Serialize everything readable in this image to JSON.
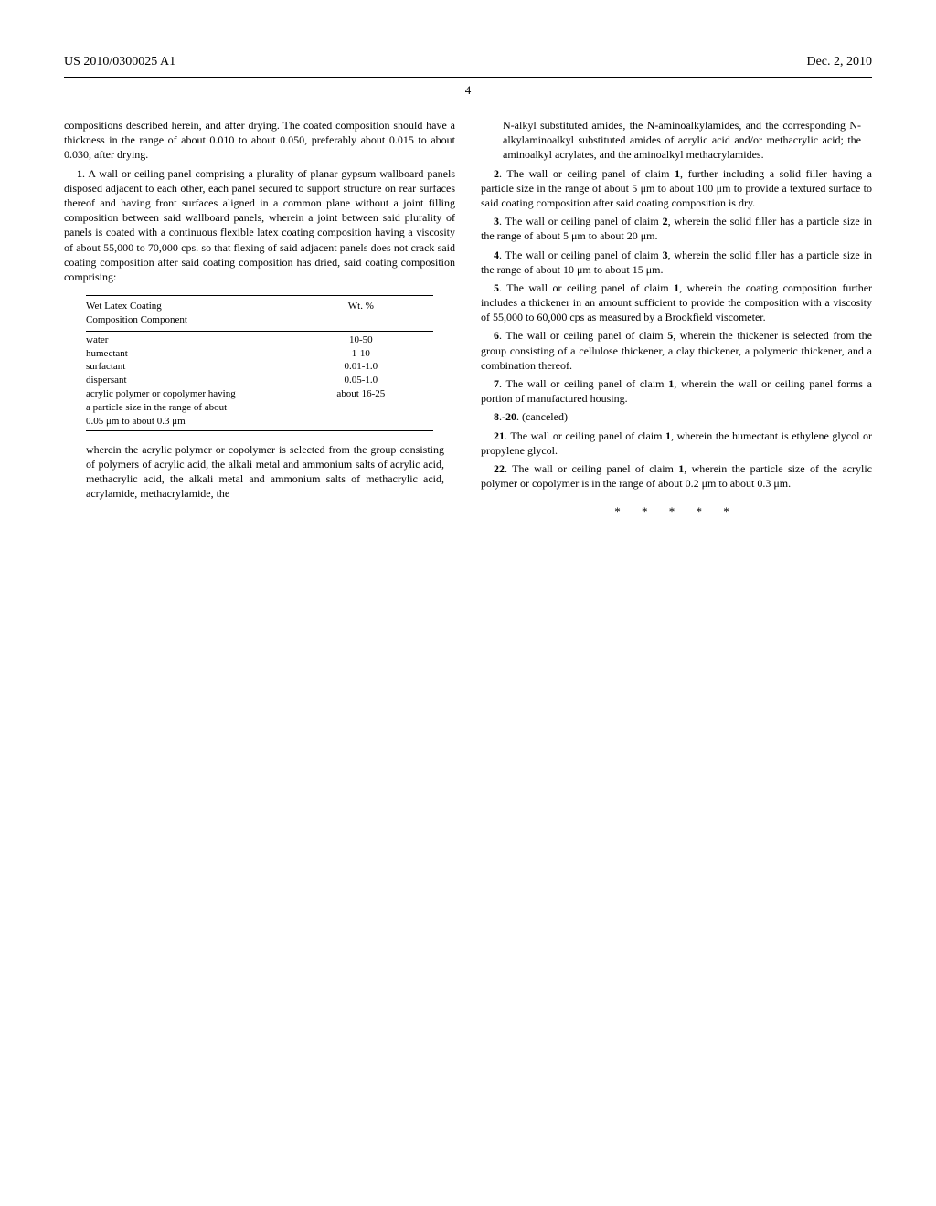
{
  "header": {
    "patent_number": "US 2010/0300025 A1",
    "date": "Dec. 2, 2010",
    "page": "4"
  },
  "col_left": {
    "intro": "compositions described herein, and after drying. The coated composition should have a thickness in the range of about 0.010 to about 0.050, preferably about 0.015 to about 0.030, after drying.",
    "claim1_label": "1",
    "claim1": ". A wall or ceiling panel comprising a plurality of planar gypsum wallboard panels disposed adjacent to each other, each panel secured to support structure on rear surfaces thereof and having front surfaces aligned in a common plane without a joint filling composition between said wallboard panels, wherein a joint between said plurality of panels is coated with a continuous flexible latex coating composition having a viscosity of about 55,000 to 70,000 cps. so that flexing of said adjacent panels does not crack said coating composition after said coating composition has dried, said coating composition comprising:",
    "table": {
      "header_left_line1": "Wet Latex Coating",
      "header_left_line2": "Composition Component",
      "header_right": "Wt. %",
      "rows": [
        {
          "c": "water",
          "v": "10-50"
        },
        {
          "c": "humectant",
          "v": "1-10"
        },
        {
          "c": "surfactant",
          "v": "0.01-1.0"
        },
        {
          "c": "dispersant",
          "v": "0.05-1.0"
        },
        {
          "c": "acrylic polymer or copolymer having",
          "v": "about 16-25"
        },
        {
          "c": "a particle size in the range of about",
          "v": ""
        },
        {
          "c": "0.05 μm to about 0.3 μm",
          "v": ""
        }
      ]
    },
    "wherein": "wherein the acrylic polymer or copolymer is selected from the group consisting of polymers of acrylic acid, the alkali metal and ammonium salts of acrylic acid, methacrylic acid, the alkali metal and ammonium salts of methacrylic acid, acrylamide, methacrylamide, the"
  },
  "col_right": {
    "cont": "N-alkyl substituted amides, the N-aminoalkylamides, and the corresponding N-alkylaminoalkyl substituted amides of acrylic acid and/or methacrylic acid; the aminoalkyl acrylates, and the aminoalkyl methacrylamides.",
    "c2_label": "2",
    "c2_ref": "1",
    "c2_a": ". The wall or ceiling panel of claim ",
    "c2_b": ", further including a solid filler having a particle size in the range of about 5 μm to about 100 μm to provide a textured surface to said coating composition after said coating composition is dry.",
    "c3_label": "3",
    "c3_ref": "2",
    "c3_a": ". The wall or ceiling panel of claim ",
    "c3_b": ", wherein the solid filler has a particle size in the range of about 5 μm to about 20 μm.",
    "c4_label": "4",
    "c4_ref": "3",
    "c4_a": ". The wall or ceiling panel of claim ",
    "c4_b": ", wherein the solid filler has a particle size in the range of about 10 μm to about 15 μm.",
    "c5_label": "5",
    "c5_ref": "1",
    "c5_a": ". The wall or ceiling panel of claim ",
    "c5_b": ", wherein the coating composition further includes a thickener in an amount sufficient to provide the composition with a viscosity of 55,000 to 60,000 cps as measured by a Brookfield viscometer.",
    "c6_label": "6",
    "c6_ref": "5",
    "c6_a": ". The wall or ceiling panel of claim ",
    "c6_b": ", wherein the thickener is selected from the group consisting of a cellulose thickener, a clay thickener, a polymeric thickener, and a combination thereof.",
    "c7_label": "7",
    "c7_ref": "1",
    "c7_a": ". The wall or ceiling panel of claim ",
    "c7_b": ", wherein the wall or ceiling panel forms a portion of manufactured housing.",
    "c8_label": "8",
    "c8_dash": ".-",
    "c8_label2": "20",
    "c8_rest": ". (canceled)",
    "c21_label": "21",
    "c21_ref": "1",
    "c21_a": ". The wall or ceiling panel of claim ",
    "c21_b": ", wherein the humectant is ethylene glycol or propylene glycol.",
    "c22_label": "22",
    "c22_ref": "1",
    "c22_a": ". The wall or ceiling panel of claim ",
    "c22_b": ", wherein the particle size of the acrylic polymer or copolymer is in the range of about 0.2 μm to about 0.3 μm.",
    "end": "* * * * *"
  }
}
